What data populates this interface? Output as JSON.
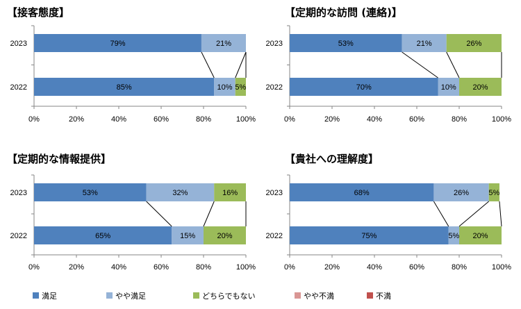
{
  "legend": [
    {
      "label": "満足",
      "color": "#4F81BD"
    },
    {
      "label": "やや満足",
      "color": "#95B3D7"
    },
    {
      "label": "どちらでもない",
      "color": "#9BBB59"
    },
    {
      "label": "やや不満",
      "color": "#D99694"
    },
    {
      "label": "不満",
      "color": "#C0504D"
    }
  ],
  "chart_data": [
    {
      "type": "bar",
      "orientation": "horizontal",
      "stacked": "percent",
      "title": "【接客態度】",
      "categories": [
        "2023",
        "2022"
      ],
      "series": [
        {
          "name": "満足",
          "values": [
            79,
            85
          ]
        },
        {
          "name": "やや満足",
          "values": [
            21,
            10
          ]
        },
        {
          "name": "どちらでもない",
          "values": [
            0,
            5
          ]
        },
        {
          "name": "やや不満",
          "values": [
            0,
            0
          ]
        },
        {
          "name": "不満",
          "values": [
            0,
            0
          ]
        }
      ],
      "xlim": [
        0,
        100
      ],
      "xticks": [
        "0%",
        "20%",
        "40%",
        "60%",
        "80%",
        "100%"
      ],
      "legend_position": "bottom",
      "series_lines": true
    },
    {
      "type": "bar",
      "orientation": "horizontal",
      "stacked": "percent",
      "title": "【定期的な訪問 (連絡)】",
      "categories": [
        "2023",
        "2022"
      ],
      "series": [
        {
          "name": "満足",
          "values": [
            53,
            70
          ]
        },
        {
          "name": "やや満足",
          "values": [
            21,
            10
          ]
        },
        {
          "name": "どちらでもない",
          "values": [
            26,
            20
          ]
        },
        {
          "name": "やや不満",
          "values": [
            0,
            0
          ]
        },
        {
          "name": "不満",
          "values": [
            0,
            0
          ]
        }
      ],
      "xlim": [
        0,
        100
      ],
      "xticks": [
        "0%",
        "20%",
        "40%",
        "60%",
        "80%",
        "100%"
      ],
      "legend_position": "bottom",
      "series_lines": true
    },
    {
      "type": "bar",
      "orientation": "horizontal",
      "stacked": "percent",
      "title": "【定期的な情報提供】",
      "categories": [
        "2023",
        "2022"
      ],
      "series": [
        {
          "name": "満足",
          "values": [
            53,
            65
          ]
        },
        {
          "name": "やや満足",
          "values": [
            32,
            15
          ]
        },
        {
          "name": "どちらでもない",
          "values": [
            16,
            20
          ]
        },
        {
          "name": "やや不満",
          "values": [
            0,
            0
          ]
        },
        {
          "name": "不満",
          "values": [
            0,
            0
          ]
        }
      ],
      "xlim": [
        0,
        100
      ],
      "xticks": [
        "0%",
        "20%",
        "40%",
        "60%",
        "80%",
        "100%"
      ],
      "legend_position": "bottom",
      "series_lines": true
    },
    {
      "type": "bar",
      "orientation": "horizontal",
      "stacked": "percent",
      "title": "【貴社への理解度】",
      "categories": [
        "2023",
        "2022"
      ],
      "series": [
        {
          "name": "満足",
          "values": [
            68,
            75
          ]
        },
        {
          "name": "やや満足",
          "values": [
            26,
            5
          ]
        },
        {
          "name": "どちらでもない",
          "values": [
            5,
            20
          ]
        },
        {
          "name": "やや不満",
          "values": [
            0,
            0
          ]
        },
        {
          "name": "不満",
          "values": [
            0,
            0
          ]
        }
      ],
      "xlim": [
        0,
        100
      ],
      "xticks": [
        "0%",
        "20%",
        "40%",
        "60%",
        "80%",
        "100%"
      ],
      "legend_position": "bottom",
      "series_lines": true
    }
  ]
}
